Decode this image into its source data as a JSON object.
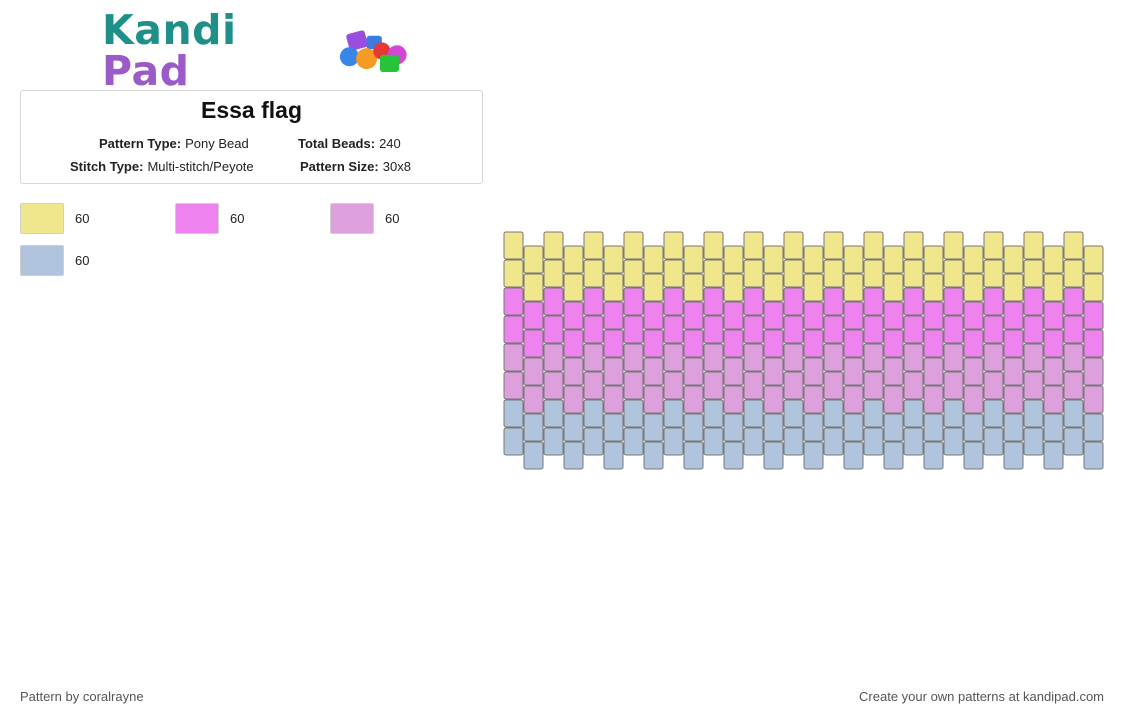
{
  "logo": {
    "part1": "Kandi",
    "part2": "Pad"
  },
  "pattern": {
    "title": "Essa flag",
    "pattern_type_label": "Pattern Type:",
    "pattern_type": "Pony Bead",
    "total_beads_label": "Total Beads:",
    "total_beads": "240",
    "stitch_type_label": "Stitch Type:",
    "stitch_type": "Multi-stitch/Peyote",
    "pattern_size_label": "Pattern Size:",
    "pattern_size": "30x8"
  },
  "palette": [
    {
      "color": "#f0e68c",
      "count": "60"
    },
    {
      "color": "#ee82ee",
      "count": "60"
    },
    {
      "color": "#dda0dd",
      "count": "60"
    },
    {
      "color": "#b0c4de",
      "count": "60"
    }
  ],
  "grid": {
    "columns": 30,
    "rows": 8,
    "row_colors": [
      "#f0e68c",
      "#f0e68c",
      "#ee82ee",
      "#ee82ee",
      "#dda0dd",
      "#dda0dd",
      "#b0c4de",
      "#b0c4de"
    ],
    "bead_border": "#777777"
  },
  "footer": {
    "author": "Pattern by coralrayne",
    "cta": "Create your own patterns at kandipad.com"
  }
}
